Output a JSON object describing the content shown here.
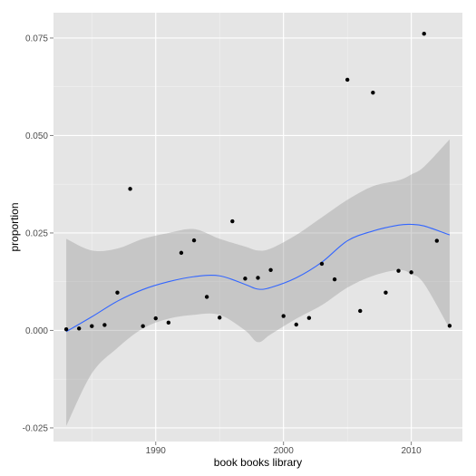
{
  "chart_data": {
    "type": "scatter",
    "title": "",
    "xlabel": "book books library",
    "ylabel": "proportion",
    "xlim": [
      1982,
      2014
    ],
    "ylim": [
      -0.0285,
      0.0815
    ],
    "x_ticks": [
      1990,
      2000,
      2010
    ],
    "x_tick_labels": [
      "1990",
      "2000",
      "2010"
    ],
    "y_ticks": [
      -0.025,
      0,
      0.025,
      0.05,
      0.075
    ],
    "y_tick_labels": [
      "-0.025",
      "0.000",
      "0.025",
      "0.050",
      "0.075"
    ],
    "grid": true,
    "points": [
      {
        "x": 1983,
        "y": 0.0003
      },
      {
        "x": 1984,
        "y": 0.0005
      },
      {
        "x": 1985,
        "y": 0.0011
      },
      {
        "x": 1986,
        "y": 0.0014
      },
      {
        "x": 1987,
        "y": 0.0097
      },
      {
        "x": 1988,
        "y": 0.0363
      },
      {
        "x": 1989,
        "y": 0.0011
      },
      {
        "x": 1990,
        "y": 0.0031
      },
      {
        "x": 1991,
        "y": 0.002
      },
      {
        "x": 1992,
        "y": 0.0199
      },
      {
        "x": 1993,
        "y": 0.0231
      },
      {
        "x": 1994,
        "y": 0.0086
      },
      {
        "x": 1995,
        "y": 0.0033
      },
      {
        "x": 1996,
        "y": 0.028
      },
      {
        "x": 1997,
        "y": 0.0133
      },
      {
        "x": 1998,
        "y": 0.0135
      },
      {
        "x": 1999,
        "y": 0.0155
      },
      {
        "x": 2000,
        "y": 0.0037
      },
      {
        "x": 2001,
        "y": 0.0015
      },
      {
        "x": 2002,
        "y": 0.0032
      },
      {
        "x": 2003,
        "y": 0.0171
      },
      {
        "x": 2004,
        "y": 0.0131
      },
      {
        "x": 2005,
        "y": 0.0643
      },
      {
        "x": 2006,
        "y": 0.005
      },
      {
        "x": 2007,
        "y": 0.061
      },
      {
        "x": 2008,
        "y": 0.0097
      },
      {
        "x": 2009,
        "y": 0.0153
      },
      {
        "x": 2010,
        "y": 0.0149
      },
      {
        "x": 2011,
        "y": 0.0761
      },
      {
        "x": 2012,
        "y": 0.023
      },
      {
        "x": 2013,
        "y": 0.0012
      }
    ],
    "smooth": {
      "x": [
        1983,
        1985,
        1987,
        1989,
        1991,
        1993,
        1995,
        1997,
        1998,
        1999,
        2001,
        2003,
        2005,
        2007,
        2009,
        2010,
        2011,
        2013
      ],
      "y": [
        -0.0003,
        0.0035,
        0.0075,
        0.0105,
        0.0125,
        0.0138,
        0.014,
        0.0118,
        0.0106,
        0.011,
        0.0135,
        0.0175,
        0.023,
        0.0255,
        0.027,
        0.0272,
        0.0268,
        0.0245
      ],
      "upper": [
        0.0235,
        0.0205,
        0.021,
        0.0235,
        0.025,
        0.026,
        0.0235,
        0.0215,
        0.0205,
        0.021,
        0.0245,
        0.029,
        0.0335,
        0.037,
        0.0385,
        0.04,
        0.042,
        0.049
      ],
      "lower": [
        -0.0245,
        -0.011,
        -0.0045,
        0.0005,
        0.003,
        0.004,
        0.004,
        0.0,
        -0.003,
        -0.001,
        0.003,
        0.0065,
        0.011,
        0.014,
        0.0155,
        0.0145,
        0.012,
        0.0005
      ]
    },
    "colors": {
      "panel": "#e5e5e5",
      "grid_major": "#ffffff",
      "grid_minor": "#f2f2f2",
      "point": "#000000",
      "line": "#3366ff",
      "band": "#999999"
    }
  }
}
